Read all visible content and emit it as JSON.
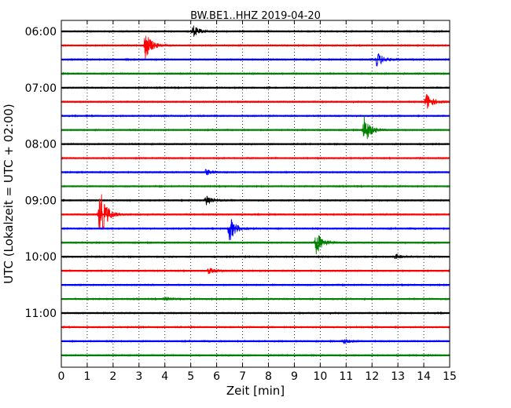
{
  "chart_data": {
    "type": "line",
    "title": "BW.BE1..HHZ 2019-04-20",
    "xlabel": "Zeit  [min]",
    "ylabel": "UTC (Lokalzeit = UTC + 02:00)",
    "xlim": [
      0,
      15
    ],
    "x_ticks": [
      "0",
      "1",
      "2",
      "3",
      "4",
      "5",
      "6",
      "7",
      "8",
      "9",
      "10",
      "11",
      "12",
      "13",
      "14",
      "15"
    ],
    "y_tick_labels": [
      "06:00",
      "07:00",
      "08:00",
      "09:00",
      "10:00",
      "11:00"
    ],
    "trace_interval_min": 15,
    "trace_colors": [
      "#000000",
      "#ff0000",
      "#0000ff",
      "#008000"
    ],
    "traces": [
      {
        "start": "06:00",
        "events": [
          {
            "t": 5.1,
            "amp": 0.9
          }
        ]
      },
      {
        "start": "06:15",
        "events": [
          {
            "t": 3.25,
            "amp": 2.2
          }
        ]
      },
      {
        "start": "06:30",
        "events": [
          {
            "t": 12.2,
            "amp": 1.2
          }
        ]
      },
      {
        "start": "06:45",
        "events": []
      },
      {
        "start": "07:00",
        "events": []
      },
      {
        "start": "07:15",
        "events": [
          {
            "t": 14.1,
            "amp": 1.4
          }
        ]
      },
      {
        "start": "07:30",
        "events": []
      },
      {
        "start": "07:45",
        "events": [
          {
            "t": 11.7,
            "amp": 2.3
          }
        ]
      },
      {
        "start": "08:00",
        "events": []
      },
      {
        "start": "08:15",
        "events": []
      },
      {
        "start": "08:30",
        "events": [
          {
            "t": 5.6,
            "amp": 0.5
          }
        ]
      },
      {
        "start": "08:45",
        "events": []
      },
      {
        "start": "09:00",
        "events": [
          {
            "t": 5.6,
            "amp": 0.9
          }
        ]
      },
      {
        "start": "09:15",
        "events": [
          {
            "t": 1.5,
            "amp": 4.0
          }
        ]
      },
      {
        "start": "09:30",
        "events": [
          {
            "t": 6.5,
            "amp": 2.0
          }
        ]
      },
      {
        "start": "09:45",
        "events": [
          {
            "t": 9.85,
            "amp": 1.8
          }
        ]
      },
      {
        "start": "10:00",
        "events": [
          {
            "t": 12.9,
            "amp": 0.4
          }
        ]
      },
      {
        "start": "10:15",
        "events": [
          {
            "t": 5.7,
            "amp": 0.5
          }
        ]
      },
      {
        "start": "10:30",
        "events": []
      },
      {
        "start": "10:45",
        "events": [
          {
            "t": 4.0,
            "amp": 0.3
          }
        ]
      },
      {
        "start": "11:00",
        "events": []
      },
      {
        "start": "11:15",
        "events": []
      },
      {
        "start": "11:30",
        "events": [
          {
            "t": 10.9,
            "amp": 0.4
          }
        ]
      },
      {
        "start": "11:45",
        "events": []
      }
    ],
    "grid": true,
    "grid_style": "dotted-vertical"
  }
}
